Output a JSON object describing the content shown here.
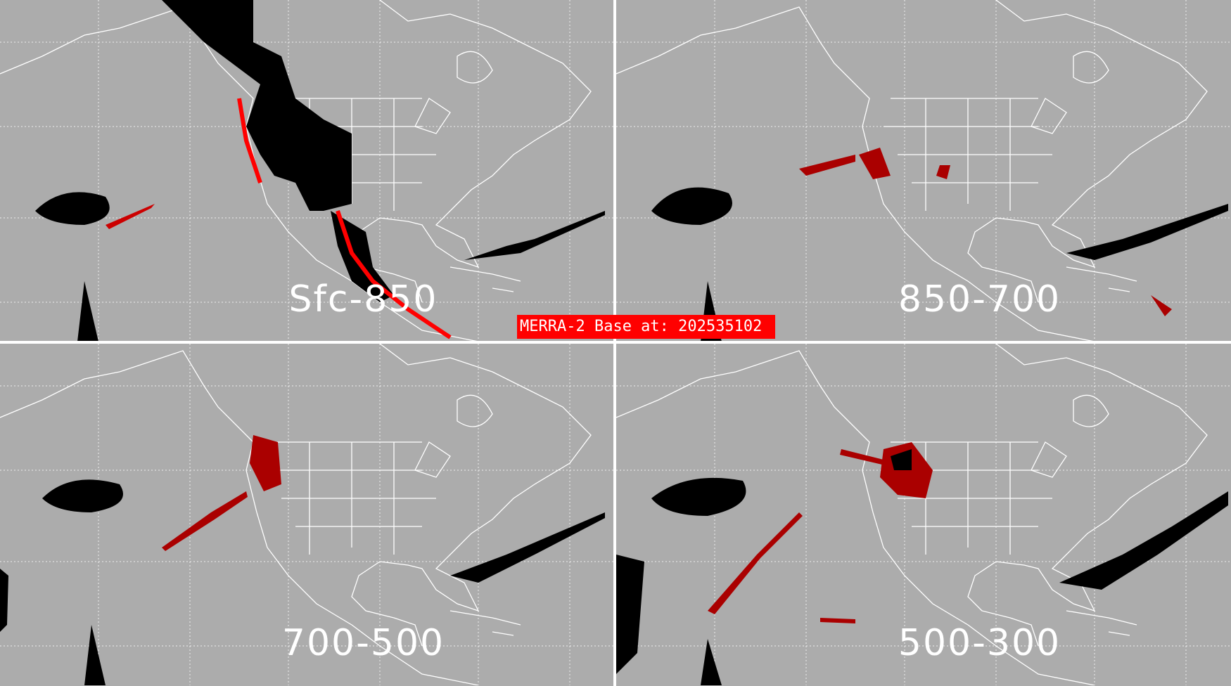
{
  "panels": [
    {
      "label": "Sfc-850"
    },
    {
      "label": "850-700"
    },
    {
      "label": "700-500"
    },
    {
      "label": "500-300"
    }
  ],
  "banner": {
    "text": "MERRA-2 Base at: 202535102"
  },
  "colors": {
    "background": "#acacac",
    "coastline": "#ffffff",
    "high": "#000000",
    "medium": "#ff0000",
    "low": "#aa0000",
    "banner": "#ff0000"
  }
}
